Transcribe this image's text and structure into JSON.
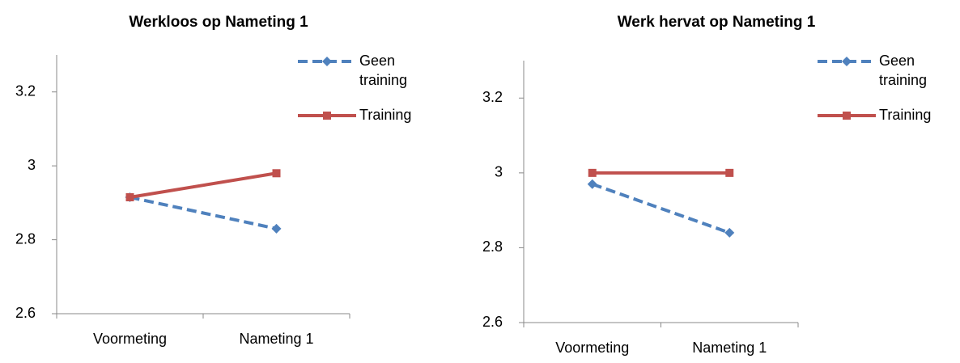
{
  "chart_data": [
    {
      "type": "line",
      "title": "Werkloos op Nameting 1",
      "categories": [
        "Voormeting",
        "Nameting 1"
      ],
      "series": [
        {
          "name": "Geen training",
          "color": "#4f81bd",
          "values": [
            2.915,
            2.83
          ]
        },
        {
          "name": "Training",
          "color": "#c0504d",
          "values": [
            2.915,
            2.98
          ]
        }
      ],
      "ylim": [
        2.6,
        3.3
      ],
      "yticks": [
        2.6,
        2.8,
        3,
        3.2
      ],
      "legend": "right"
    },
    {
      "type": "line",
      "title": "Werk hervat op Nameting 1",
      "categories": [
        "Voormeting",
        "Nameting 1"
      ],
      "series": [
        {
          "name": "Geen training",
          "color": "#4f81bd",
          "values": [
            2.97,
            2.84
          ]
        },
        {
          "name": "Training",
          "color": "#c0504d",
          "values": [
            3.0,
            3.0
          ]
        }
      ],
      "ylim": [
        2.6,
        3.3
      ],
      "yticks": [
        2.6,
        2.8,
        3,
        3.2
      ],
      "legend": "right"
    }
  ]
}
